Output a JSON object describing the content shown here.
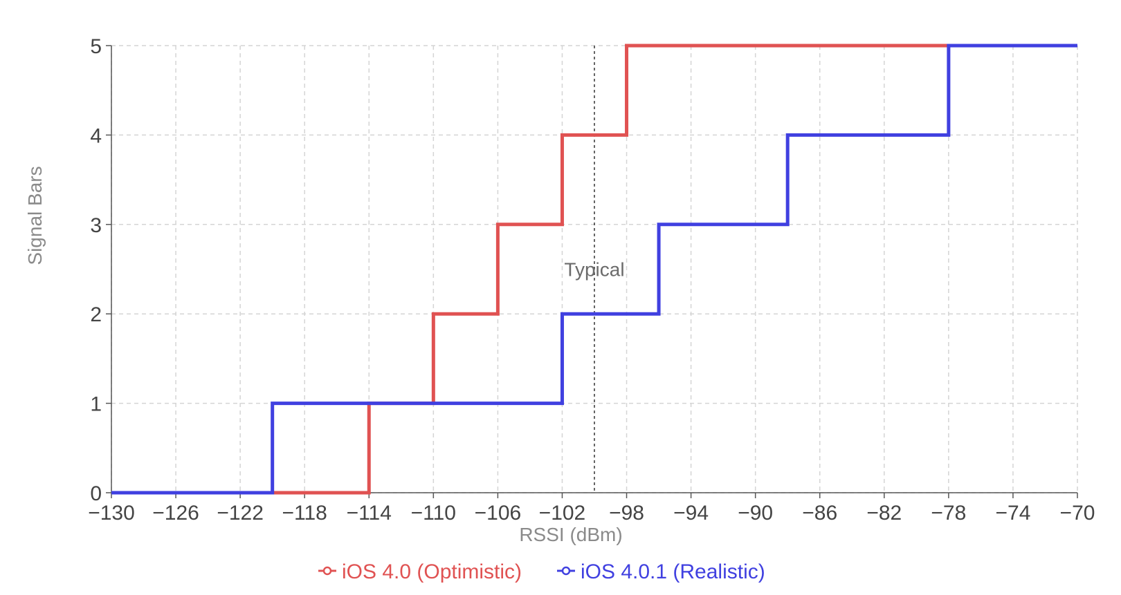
{
  "chart_data": {
    "type": "line",
    "step": "post",
    "xlabel": "RSSI (dBm)",
    "ylabel": "Signal Bars",
    "xlim": [
      -130,
      -70
    ],
    "ylim": [
      0,
      5
    ],
    "x_ticks": [
      -130,
      -126,
      -122,
      -118,
      -114,
      -110,
      -106,
      -102,
      -98,
      -94,
      -90,
      -86,
      -82,
      -78,
      -74,
      -70
    ],
    "y_ticks": [
      0,
      1,
      2,
      3,
      4,
      5
    ],
    "grid": true,
    "legend_position": "bottom",
    "series": [
      {
        "name": "iOS 4.0 (Optimistic)",
        "color": "#e05252",
        "x": [
          -130,
          -120,
          -114,
          -110,
          -106,
          -102,
          -98,
          -70
        ],
        "y": [
          0,
          0,
          1,
          2,
          3,
          4,
          5,
          5
        ]
      },
      {
        "name": "iOS 4.0.1 (Realistic)",
        "color": "#4040e0",
        "x": [
          -130,
          -120,
          -102,
          -96,
          -88,
          -78,
          -70
        ],
        "y": [
          0,
          1,
          2,
          3,
          4,
          5,
          5
        ]
      }
    ],
    "annotations": [
      {
        "type": "vline",
        "x": -100,
        "label": "Typical",
        "label_y": 2.5,
        "style": "dotted",
        "color": "#333333"
      }
    ]
  }
}
